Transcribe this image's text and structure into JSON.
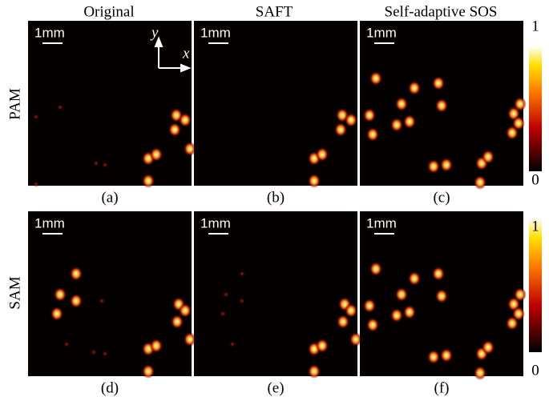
{
  "columns": [
    "Original",
    "SAFT",
    "Self-adaptive SOS"
  ],
  "rows": [
    "PAM",
    "SAM"
  ],
  "captions": [
    "(a)",
    "(b)",
    "(c)",
    "(d)",
    "(e)",
    "(f)"
  ],
  "scale_bar": "1mm",
  "axis_labels": {
    "x": "x",
    "y": "y"
  },
  "colorbar": {
    "max": "1",
    "min": "0"
  }
}
